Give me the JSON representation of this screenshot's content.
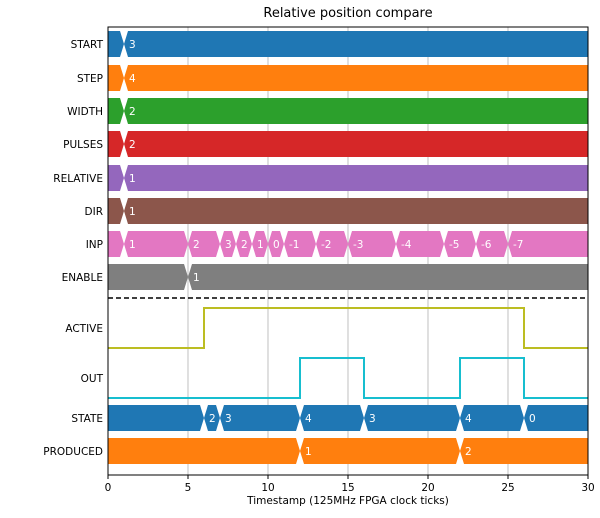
{
  "chart_data": {
    "type": "timing",
    "title": "Relative position compare",
    "xlabel": "Timestamp (125MHz FPGA clock ticks)",
    "xlim": [
      0,
      30
    ],
    "xticks": [
      0,
      5,
      10,
      15,
      20,
      25,
      30
    ],
    "grid": "vertical",
    "separator_after_row": "ENABLE",
    "rows": [
      {
        "name": "START",
        "kind": "bus",
        "color": "#1f77b4",
        "transitions": [
          {
            "t": 1,
            "label": "3"
          }
        ]
      },
      {
        "name": "STEP",
        "kind": "bus",
        "color": "#ff7f0e",
        "transitions": [
          {
            "t": 1,
            "label": "4"
          }
        ]
      },
      {
        "name": "WIDTH",
        "kind": "bus",
        "color": "#2ca02c",
        "transitions": [
          {
            "t": 1,
            "label": "2"
          }
        ]
      },
      {
        "name": "PULSES",
        "kind": "bus",
        "color": "#d62728",
        "transitions": [
          {
            "t": 1,
            "label": "2"
          }
        ]
      },
      {
        "name": "RELATIVE",
        "kind": "bus",
        "color": "#9467bd",
        "transitions": [
          {
            "t": 1,
            "label": "1"
          }
        ]
      },
      {
        "name": "DIR",
        "kind": "bus",
        "color": "#8c564b",
        "transitions": [
          {
            "t": 1,
            "label": "1"
          }
        ]
      },
      {
        "name": "INP",
        "kind": "bus",
        "color": "#e377c2",
        "transitions": [
          {
            "t": 1,
            "label": "1"
          },
          {
            "t": 5,
            "label": "2"
          },
          {
            "t": 7,
            "label": "3"
          },
          {
            "t": 8,
            "label": "2"
          },
          {
            "t": 9,
            "label": "1"
          },
          {
            "t": 10,
            "label": "0"
          },
          {
            "t": 11,
            "label": "-1"
          },
          {
            "t": 13,
            "label": "-2"
          },
          {
            "t": 15,
            "label": "-3"
          },
          {
            "t": 18,
            "label": "-4"
          },
          {
            "t": 21,
            "label": "-5"
          },
          {
            "t": 23,
            "label": "-6"
          },
          {
            "t": 25,
            "label": "-7"
          }
        ]
      },
      {
        "name": "ENABLE",
        "kind": "bus",
        "color": "#7f7f7f",
        "transitions": [
          {
            "t": 5,
            "label": "1"
          }
        ]
      },
      {
        "name": "ACTIVE",
        "kind": "bit",
        "color": "#bcbd22",
        "initial": 0,
        "changes": [
          [
            6,
            1
          ],
          [
            26,
            0
          ]
        ]
      },
      {
        "name": "OUT",
        "kind": "bit",
        "color": "#17becf",
        "initial": 0,
        "changes": [
          [
            12,
            1
          ],
          [
            16,
            0
          ],
          [
            22,
            1
          ],
          [
            26,
            0
          ]
        ]
      },
      {
        "name": "STATE",
        "kind": "bus",
        "color": "#1f77b4",
        "transitions": [
          {
            "t": 6,
            "label": "2"
          },
          {
            "t": 7,
            "label": "3"
          },
          {
            "t": 12,
            "label": "4"
          },
          {
            "t": 16,
            "label": "3"
          },
          {
            "t": 22,
            "label": "4"
          },
          {
            "t": 26,
            "label": "0"
          }
        ]
      },
      {
        "name": "PRODUCED",
        "kind": "bus",
        "color": "#ff7f0e",
        "transitions": [
          {
            "t": 12,
            "label": "1"
          },
          {
            "t": 22,
            "label": "2"
          }
        ]
      }
    ]
  }
}
